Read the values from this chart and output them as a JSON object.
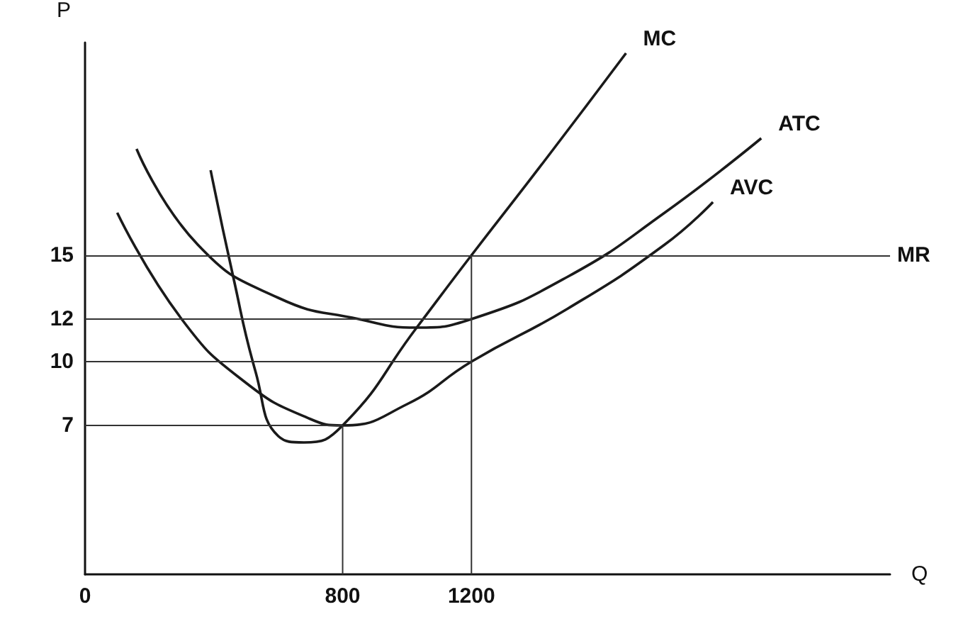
{
  "chart_data": {
    "type": "line",
    "xlabel": "Q",
    "ylabel": "P",
    "xlim": [
      0,
      2500
    ],
    "ylim": [
      0,
      25
    ],
    "xticks": [
      0,
      800,
      1200
    ],
    "yticks": [
      7,
      10,
      12,
      15
    ],
    "grid": false,
    "legend": false,
    "marker": "none",
    "line_style": "solid",
    "series": [
      {
        "name": "MC",
        "color": "#1a1a1a",
        "x": [
          390,
          460,
          530,
          600,
          680,
          800,
          1030,
          1200,
          1430,
          1680
        ],
        "values": [
          19,
          14,
          9.5,
          6.5,
          6.2,
          7,
          11.6,
          15,
          19.5,
          24.5
        ]
      },
      {
        "name": "ATC",
        "color": "#1a1a1a",
        "x": [
          160,
          350,
          600,
          850,
          1030,
          1200,
          1500,
          1800,
          2100
        ],
        "values": [
          20,
          15.5,
          13,
          12,
          11.6,
          12,
          14,
          17,
          20.5
        ]
      },
      {
        "name": "AVC",
        "color": "#1a1a1a",
        "x": [
          100,
          300,
          500,
          700,
          800,
          1000,
          1200,
          1500,
          1800,
          1950
        ],
        "values": [
          17,
          12,
          9,
          7.3,
          7,
          8,
          10,
          12.5,
          15.5,
          17.5
        ]
      },
      {
        "color": "#333333",
        "x": [
          0,
          800
        ],
        "values": [
          7,
          7
        ]
      },
      {
        "color": "#333333",
        "x": [
          800,
          800
        ],
        "values": [
          7,
          0
        ]
      },
      {
        "color": "#333333",
        "x": [
          0,
          1200
        ],
        "values": [
          10,
          10
        ]
      },
      {
        "color": "#333333",
        "x": [
          0,
          1200
        ],
        "values": [
          12,
          12
        ]
      },
      {
        "color": "#333333",
        "x": [
          1200,
          1200
        ],
        "values": [
          15,
          0
        ]
      }
    ],
    "ref_lines": [
      {
        "axis": "y",
        "value": 15,
        "label": "MR"
      }
    ]
  }
}
